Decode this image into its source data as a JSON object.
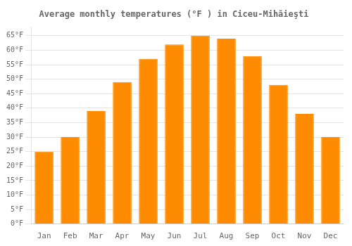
{
  "chart_data": {
    "type": "bar",
    "title": "Average monthly temperatures (°F ) in Ciceu-Mihăieşti",
    "categories": [
      "Jan",
      "Feb",
      "Mar",
      "Apr",
      "May",
      "Jun",
      "Jul",
      "Aug",
      "Sep",
      "Oct",
      "Nov",
      "Dec"
    ],
    "values": [
      25,
      30,
      39,
      49,
      57,
      62,
      65,
      64,
      58,
      48,
      38,
      30
    ],
    "color": "#FF8C00",
    "ylim": [
      0,
      68
    ],
    "yticks": [
      {
        "value": 0,
        "label": "0°F"
      },
      {
        "value": 5,
        "label": "5°F"
      },
      {
        "value": 10,
        "label": "10°F"
      },
      {
        "value": 15,
        "label": "15°F"
      },
      {
        "value": 20,
        "label": "20°F"
      },
      {
        "value": 25,
        "label": "25°F"
      },
      {
        "value": 30,
        "label": "30°F"
      },
      {
        "value": 35,
        "label": "35°F"
      },
      {
        "value": 40,
        "label": "40°F"
      },
      {
        "value": 45,
        "label": "45°F"
      },
      {
        "value": 50,
        "label": "50°F"
      },
      {
        "value": 55,
        "label": "55°F"
      },
      {
        "value": 60,
        "label": "60°F"
      },
      {
        "value": 65,
        "label": "65°F"
      }
    ],
    "grid": true
  }
}
